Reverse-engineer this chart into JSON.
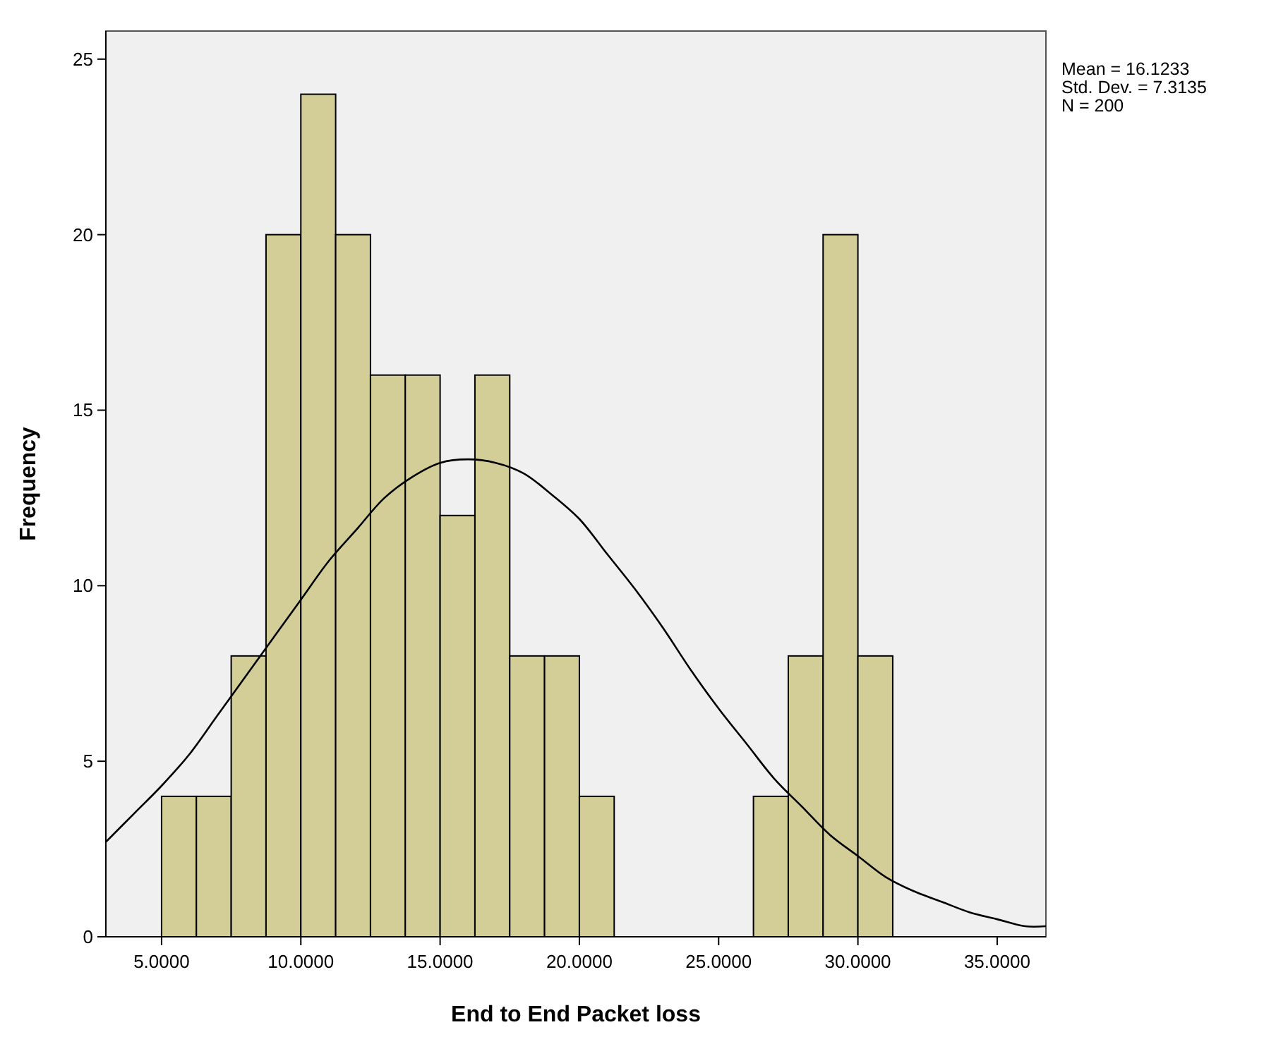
{
  "chart_data": {
    "type": "histogram",
    "xlabel": "End to End Packet loss",
    "ylabel": "Frequency",
    "annotations": [
      "Mean = 16.1233",
      "Std. Dev. = 7.3135",
      "N = 200"
    ],
    "bins": [
      5,
      6.25,
      7.5,
      8.75,
      10,
      11.25,
      12.5,
      13.75,
      15,
      16.25,
      17.5,
      18.75,
      20,
      21.25,
      22.5,
      23.75,
      25,
      26.25,
      27.5,
      28.75,
      30,
      31.25
    ],
    "series": [
      {
        "color": "#d3ce97",
        "values": [
          4,
          4,
          8,
          20,
          24,
          20,
          16,
          16,
          12,
          16,
          8,
          8,
          4,
          0,
          0,
          0,
          0,
          4,
          8,
          20,
          8
        ]
      },
      {
        "type": "line",
        "color": "#000000",
        "x": [
          3,
          4,
          5,
          6,
          7,
          8,
          9,
          10,
          11,
          12,
          13,
          14,
          15,
          16,
          17,
          18,
          19,
          20,
          21,
          22,
          23,
          24,
          25,
          26,
          27,
          28,
          29,
          30,
          31,
          32,
          33,
          34,
          35,
          36,
          36.75
        ],
        "values": [
          2.7,
          3.5,
          4.3,
          5.2,
          6.3,
          7.4,
          8.5,
          9.6,
          10.7,
          11.6,
          12.5,
          13.1,
          13.5,
          13.6,
          13.5,
          13.2,
          12.6,
          11.9,
          10.9,
          9.9,
          8.8,
          7.6,
          6.5,
          5.5,
          4.5,
          3.7,
          2.9,
          2.3,
          1.7,
          1.3,
          1.0,
          0.7,
          0.5,
          0.3,
          0.3
        ]
      }
    ],
    "xlim": [
      3,
      36.75
    ],
    "ylim": [
      0,
      25.8
    ],
    "xticks": [
      {
        "value": 5,
        "label": "5.0000"
      },
      {
        "value": 10,
        "label": "10.0000"
      },
      {
        "value": 15,
        "label": "15.0000"
      },
      {
        "value": 20,
        "label": "20.0000"
      },
      {
        "value": 25,
        "label": "25.0000"
      },
      {
        "value": 30,
        "label": "30.0000"
      },
      {
        "value": 35,
        "label": "35.0000"
      }
    ],
    "yticks": [
      0,
      5,
      10,
      15,
      20,
      25
    ],
    "grid": false
  }
}
